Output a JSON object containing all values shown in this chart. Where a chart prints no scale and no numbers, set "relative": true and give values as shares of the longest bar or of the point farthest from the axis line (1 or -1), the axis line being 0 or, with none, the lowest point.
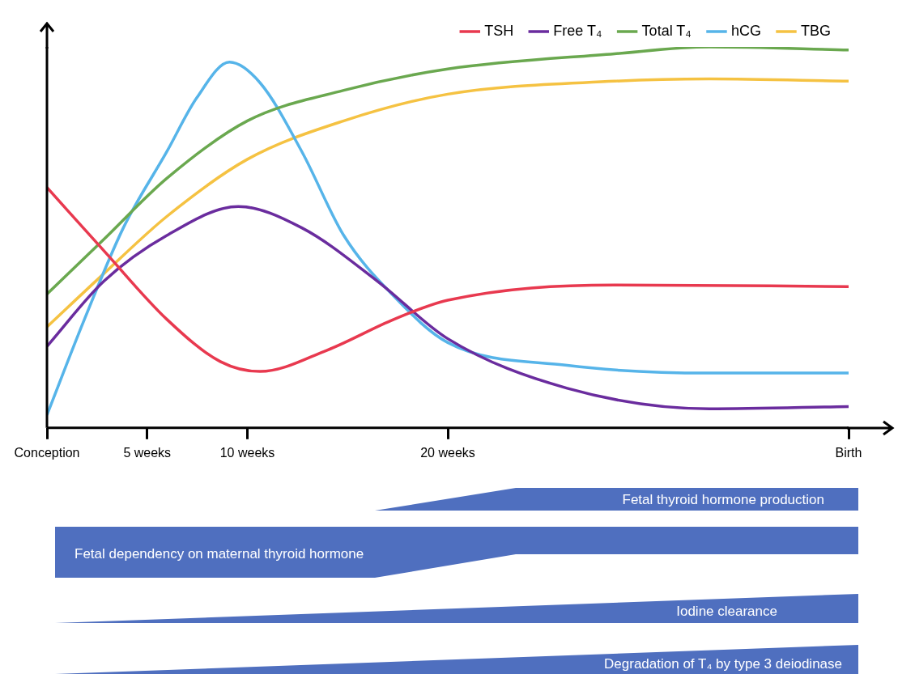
{
  "chart_data": {
    "type": "line",
    "relative": true,
    "xlim": [
      0,
      40
    ],
    "xticks": [
      {
        "value": 0,
        "label": "Conception"
      },
      {
        "value": 5,
        "label": "5 weeks"
      },
      {
        "value": 10,
        "label": "10 weeks"
      },
      {
        "value": 20,
        "label": "20 weeks"
      },
      {
        "value": 40,
        "label": "Birth"
      }
    ],
    "series": [
      {
        "name": "TSH",
        "color": "#e8394f",
        "x": [
          0,
          2.84,
          5.98,
          8.65,
          10.63,
          13.98,
          17.32,
          20,
          28.32,
          40
        ],
        "values": [
          0.631,
          0.465,
          0.285,
          0.174,
          0.148,
          0.204,
          0.285,
          0.335,
          0.375,
          0.371
        ]
      },
      {
        "name": "Free T₄",
        "color": "#6a2c9e",
        "x": [
          0,
          2.84,
          5.98,
          9.55,
          12.72,
          16.49,
          20,
          25.96,
          33.05,
          40
        ],
        "values": [
          0.214,
          0.385,
          0.505,
          0.581,
          0.525,
          0.385,
          0.234,
          0.104,
          0.05,
          0.056
        ]
      },
      {
        "name": "Total T₄",
        "color": "#6aa84f",
        "x": [
          0,
          2.84,
          5.98,
          10,
          14.81,
          20,
          28.32,
          33.05,
          40
        ],
        "values": [
          0.351,
          0.495,
          0.655,
          0.806,
          0.886,
          0.942,
          0.982,
          1,
          0.992
        ]
      },
      {
        "name": "hCG",
        "color": "#56b4e9",
        "x": [
          0,
          1.87,
          3.81,
          5.98,
          7.47,
          9.11,
          10.63,
          12.72,
          14.81,
          17.32,
          20,
          25.96,
          33.05,
          40
        ],
        "values": [
          0.034,
          0.285,
          0.525,
          0.725,
          0.866,
          0.96,
          0.906,
          0.725,
          0.505,
          0.345,
          0.224,
          0.164,
          0.144,
          0.144
        ]
      },
      {
        "name": "TBG",
        "color": "#f5c242",
        "x": [
          0,
          2.84,
          5.98,
          10,
          14.81,
          20,
          28.32,
          33.05,
          40
        ],
        "values": [
          0.265,
          0.405,
          0.555,
          0.705,
          0.806,
          0.876,
          0.91,
          0.916,
          0.91
        ]
      }
    ],
    "legend": "top right",
    "marker": "none",
    "line_style": "solid",
    "grid": false,
    "annotations": [
      "Fetal thyroid hormone production",
      "Fetal dependency on maternal thyroid hormone",
      "Iodine clearance",
      "Degradation of T₄ by type 3 deiodinase"
    ]
  }
}
